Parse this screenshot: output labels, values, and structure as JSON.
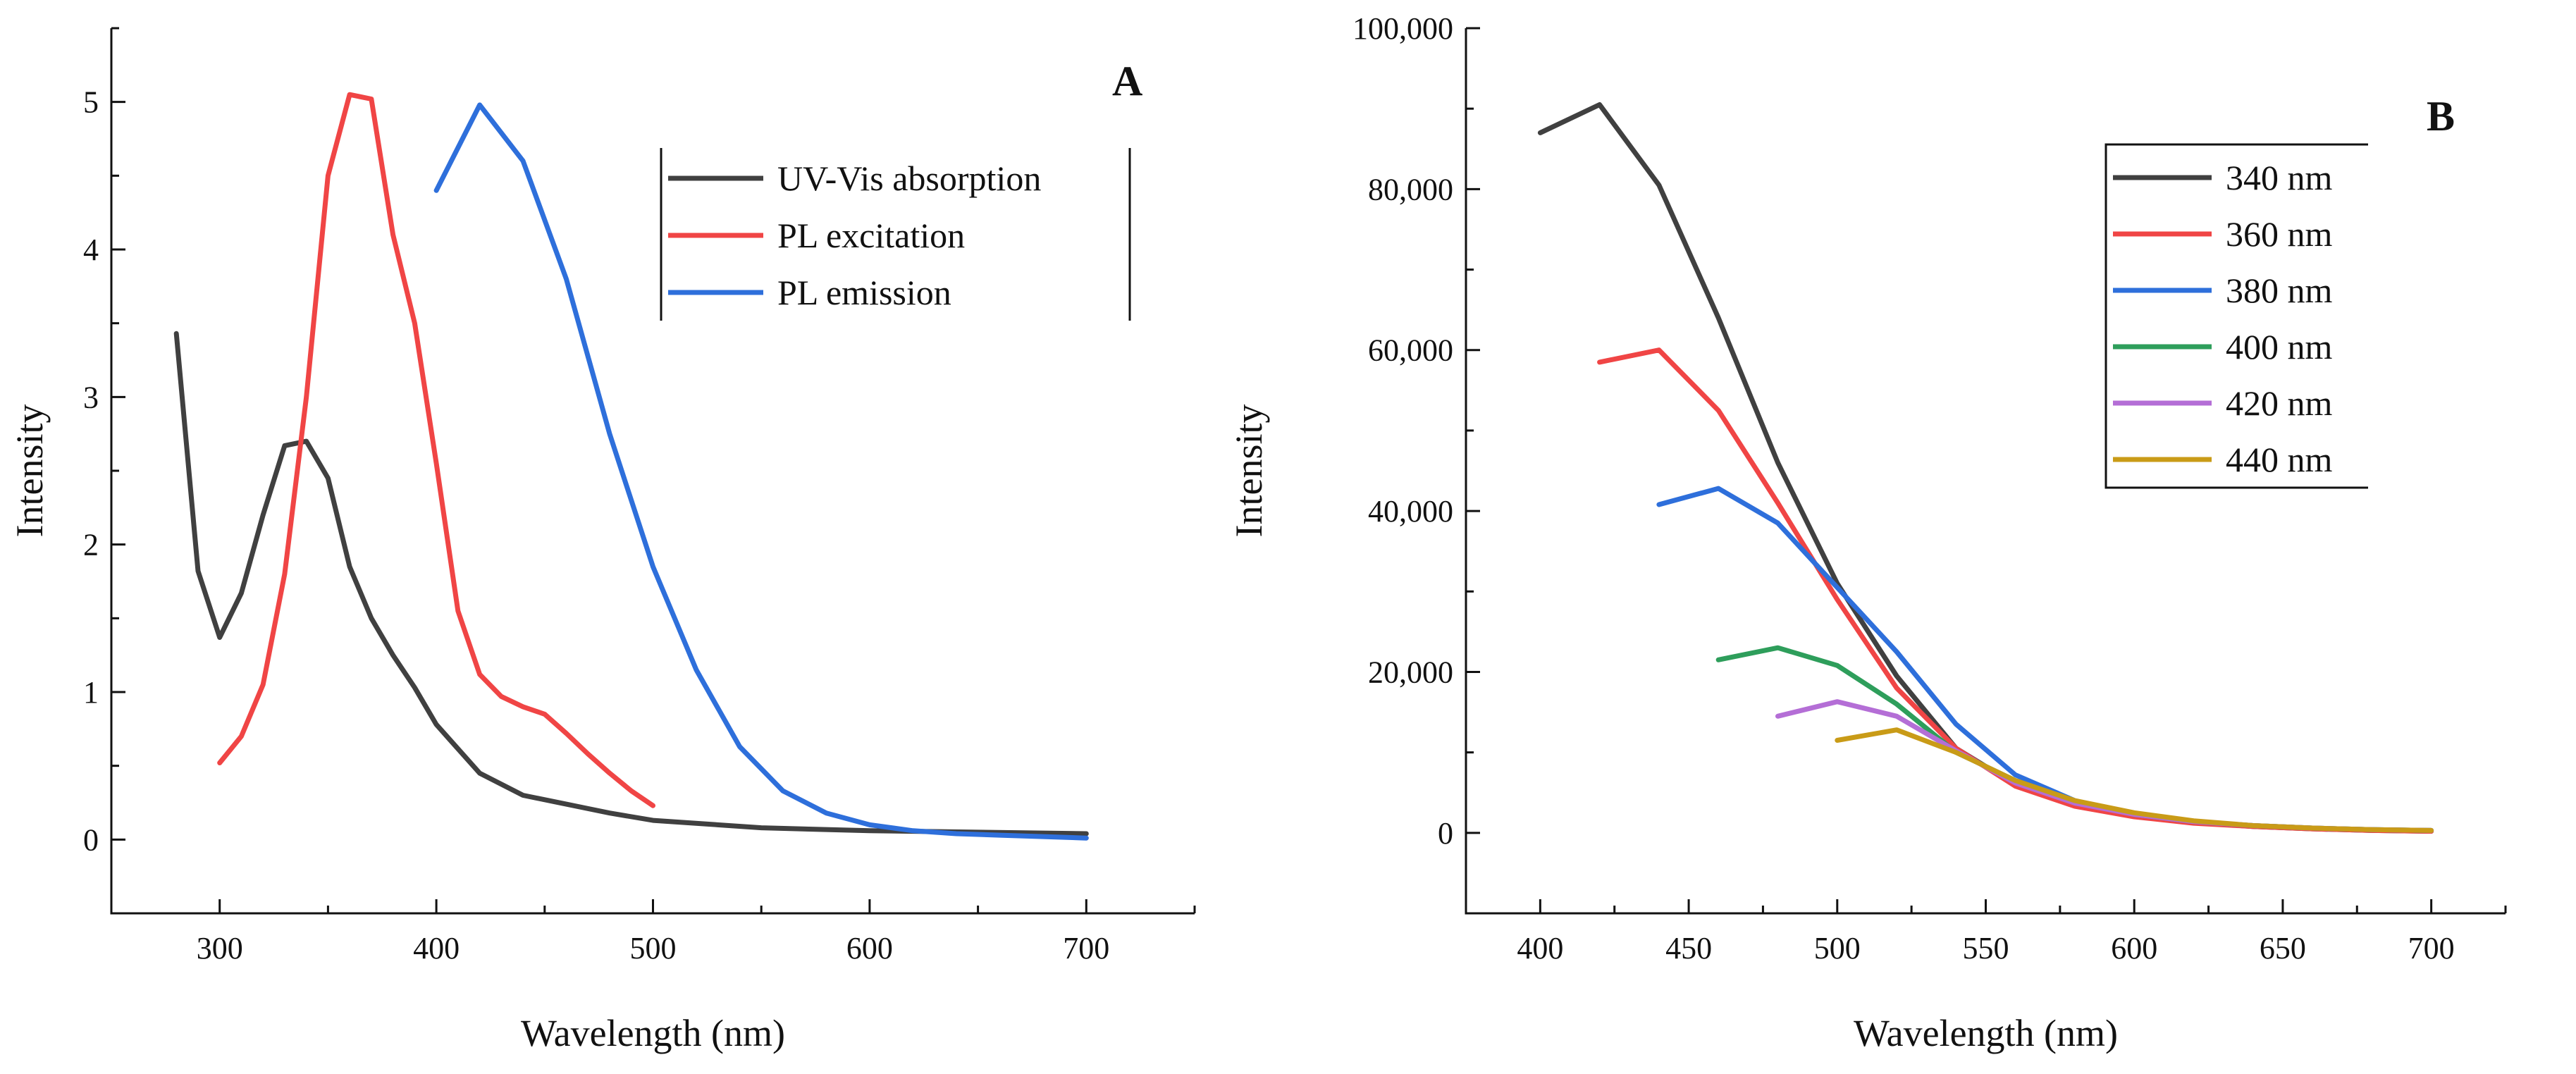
{
  "chart_data": [
    {
      "type": "line",
      "panel_label": "A",
      "xlabel": "Wavelength (nm)",
      "ylabel": "Intensity",
      "xlim": [
        250,
        750
      ],
      "ylim": [
        -0.5,
        5.5
      ],
      "xticks": [
        300,
        400,
        500,
        600,
        700
      ],
      "yticks": [
        0,
        1,
        2,
        3,
        4,
        5
      ],
      "legend_position": "top-right",
      "series": [
        {
          "name": "UV-Vis absorption",
          "color": "#404040",
          "x": [
            280,
            290,
            300,
            310,
            320,
            330,
            340,
            350,
            360,
            370,
            380,
            390,
            400,
            420,
            440,
            460,
            480,
            500,
            550,
            600,
            650,
            700
          ],
          "y": [
            3.43,
            1.82,
            1.37,
            1.67,
            2.2,
            2.67,
            2.7,
            2.45,
            1.85,
            1.5,
            1.25,
            1.03,
            0.78,
            0.45,
            0.3,
            0.24,
            0.18,
            0.13,
            0.08,
            0.06,
            0.05,
            0.04
          ]
        },
        {
          "name": "PL excitation",
          "color": "#f04545",
          "x": [
            300,
            310,
            320,
            330,
            340,
            350,
            360,
            370,
            380,
            390,
            400,
            410,
            420,
            430,
            440,
            450,
            460,
            470,
            480,
            490,
            500
          ],
          "y": [
            0.52,
            0.7,
            1.05,
            1.8,
            3.0,
            4.5,
            5.05,
            5.02,
            4.1,
            3.5,
            2.55,
            1.55,
            1.12,
            0.97,
            0.9,
            0.85,
            0.72,
            0.58,
            0.45,
            0.33,
            0.23
          ]
        },
        {
          "name": "PL emission",
          "color": "#2e6fdb",
          "x": [
            400,
            420,
            440,
            460,
            480,
            500,
            520,
            540,
            560,
            580,
            600,
            620,
            640,
            660,
            680,
            700
          ],
          "y": [
            4.4,
            4.98,
            4.6,
            3.8,
            2.75,
            1.85,
            1.15,
            0.63,
            0.33,
            0.18,
            0.1,
            0.06,
            0.04,
            0.03,
            0.02,
            0.01
          ]
        }
      ]
    },
    {
      "type": "line",
      "panel_label": "B",
      "xlabel": "Wavelength (nm)",
      "ylabel": "Intensity",
      "xlim": [
        375,
        725
      ],
      "ylim": [
        -10000,
        100000
      ],
      "xticks": [
        400,
        450,
        500,
        550,
        600,
        650,
        700
      ],
      "yticks": [
        0,
        20000,
        40000,
        60000,
        80000,
        100000
      ],
      "ytick_labels": [
        "0",
        "20,000",
        "40,000",
        "60,000",
        "80,000",
        "100,000"
      ],
      "legend_position": "top-right",
      "series": [
        {
          "name": "340 nm",
          "color": "#404040",
          "x": [
            400,
            420,
            440,
            460,
            480,
            500,
            520,
            540,
            560,
            580,
            600,
            620,
            640,
            660,
            680,
            700
          ],
          "y": [
            87000,
            90500,
            80500,
            64000,
            46000,
            31000,
            19500,
            10500,
            6000,
            3500,
            2200,
            1300,
            800,
            500,
            300,
            200
          ]
        },
        {
          "name": "360 nm",
          "color": "#f04545",
          "x": [
            420,
            440,
            460,
            480,
            500,
            520,
            540,
            560,
            580,
            600,
            620,
            640,
            660,
            680,
            700
          ],
          "y": [
            58500,
            60000,
            52500,
            41000,
            29000,
            18000,
            10500,
            5800,
            3300,
            2000,
            1200,
            800,
            500,
            300,
            200
          ]
        },
        {
          "name": "380 nm",
          "color": "#2e6fdb",
          "x": [
            440,
            460,
            480,
            500,
            520,
            540,
            560,
            580,
            600,
            620,
            640,
            660,
            680,
            700
          ],
          "y": [
            40800,
            42800,
            38500,
            30500,
            22500,
            13500,
            7200,
            4000,
            2300,
            1400,
            900,
            600,
            400,
            300
          ]
        },
        {
          "name": "400 nm",
          "color": "#2e9e5b",
          "x": [
            460,
            480,
            500,
            520,
            540,
            560,
            580,
            600,
            620,
            640,
            660,
            680,
            700
          ],
          "y": [
            21500,
            23000,
            20800,
            16000,
            10000,
            6500,
            3800,
            2300,
            1400,
            900,
            600,
            400,
            300
          ]
        },
        {
          "name": "420 nm",
          "color": "#b46ed6",
          "x": [
            480,
            500,
            520,
            540,
            560,
            580,
            600,
            620,
            640,
            660,
            680,
            700
          ],
          "y": [
            14500,
            16300,
            14500,
            10200,
            6200,
            3700,
            2300,
            1400,
            900,
            600,
            400,
            300
          ]
        },
        {
          "name": "440 nm",
          "color": "#c99b17",
          "x": [
            500,
            520,
            540,
            560,
            580,
            600,
            620,
            640,
            660,
            680,
            700
          ],
          "y": [
            11500,
            12800,
            10000,
            6500,
            4000,
            2500,
            1500,
            900,
            600,
            400,
            300
          ]
        }
      ]
    }
  ]
}
